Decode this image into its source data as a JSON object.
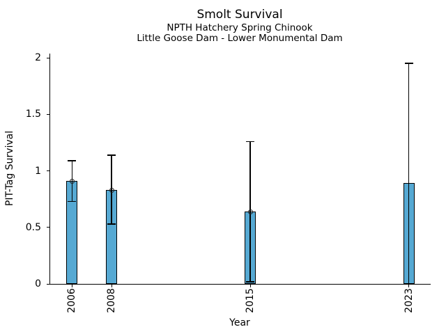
{
  "chart_data": {
    "type": "bar",
    "title": "Smolt Survival",
    "subtitles": [
      "NPTH Hatchery Spring Chinook",
      "Little Goose Dam - Lower Monumental Dam"
    ],
    "xlabel": "Year",
    "ylabel": "PIT-Tag Survival",
    "categories": [
      "2006",
      "2008",
      "2015",
      "2023"
    ],
    "x_values": [
      2006,
      2008,
      2015,
      2023
    ],
    "values": [
      0.91,
      0.83,
      0.64,
      0.89
    ],
    "error_low": [
      0.73,
      0.53,
      0.02,
      0.0
    ],
    "error_high": [
      1.09,
      1.14,
      1.26,
      1.95
    ],
    "point_markers": [
      true,
      true,
      true,
      false
    ],
    "marker_style": "open-circle",
    "ylim": [
      0,
      2
    ],
    "yticks": [
      0,
      0.5,
      1,
      1.5,
      2
    ],
    "ytick_labels": [
      "0",
      "0.5",
      "1",
      "1.5",
      "2"
    ],
    "xlim": [
      2004.9,
      2024.1
    ],
    "bar_width_years": 0.56,
    "grid": false,
    "legend": false,
    "colors": {
      "bar_fill": "#56A9D3",
      "bar_edge": "#000000",
      "error_bar": "#000000",
      "marker_edge": "#222222",
      "text": "#000000",
      "background": "#ffffff"
    }
  }
}
